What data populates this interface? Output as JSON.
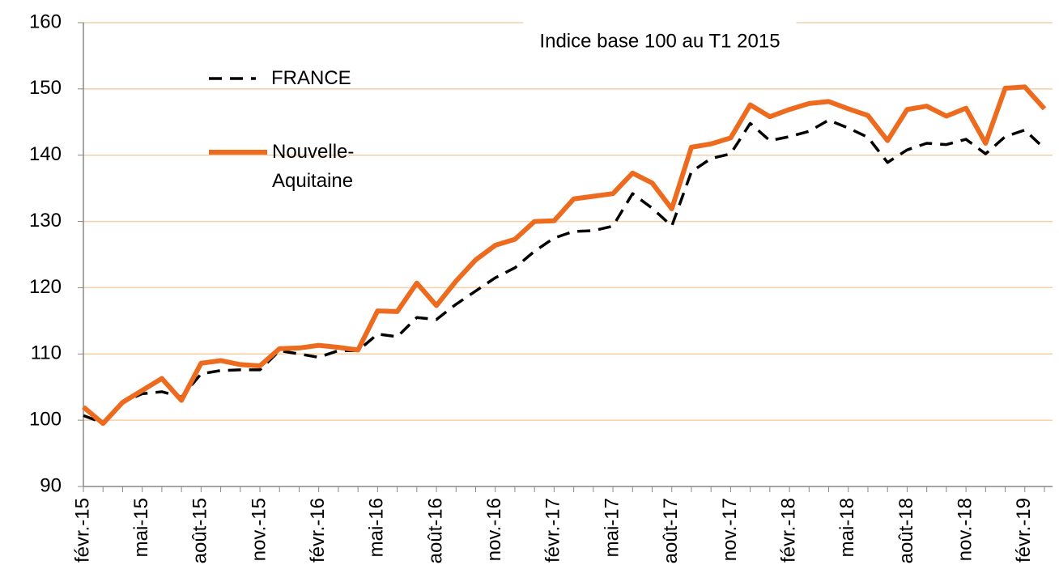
{
  "chart_data": {
    "type": "line",
    "annotation": "Indice base 100 au T1 2015",
    "categories": [
      "févr.-15",
      null,
      null,
      "mai-15",
      null,
      null,
      "août-15",
      null,
      null,
      "nov.-15",
      null,
      null,
      "févr.-16",
      null,
      null,
      "mai-16",
      null,
      null,
      "août-16",
      null,
      null,
      "nov.-16",
      null,
      null,
      "févr.-17",
      null,
      null,
      "mai-17",
      null,
      null,
      "août-17",
      null,
      null,
      "nov.-17",
      null,
      null,
      "févr.-18",
      null,
      null,
      "mai-18",
      null,
      null,
      "août-18",
      null,
      null,
      "nov.-18",
      null,
      null,
      "févr.-19",
      null
    ],
    "series": [
      {
        "name": "FRANCE",
        "color": "#000000",
        "dash": true,
        "values": [
          100.7,
          99.6,
          102.7,
          104,
          104.3,
          103.5,
          107,
          107.5,
          107.6,
          107.6,
          110.5,
          110,
          109.5,
          110.5,
          110.5,
          113,
          112.6,
          115.5,
          115.2,
          117.5,
          119.5,
          121.5,
          123,
          125.5,
          127.5,
          128.5,
          128.6,
          129.3,
          134.2,
          132,
          129.3,
          137.5,
          139.5,
          140.2,
          144.8,
          142.2,
          142.8,
          143.6,
          145.3,
          144.1,
          142.7,
          138.9,
          140.8,
          141.8,
          141.6,
          142.4,
          140.2,
          142.8,
          143.8,
          141
        ]
      },
      {
        "name": "Nouvelle-Aquitaine",
        "color": "#ed6b1e",
        "dash": false,
        "values": [
          102,
          99.5,
          102.7,
          104.5,
          106.3,
          103,
          108.6,
          109,
          108.4,
          108.2,
          110.8,
          110.9,
          111.3,
          111,
          110.6,
          116.5,
          116.4,
          120.7,
          117.3,
          121,
          124.2,
          126.4,
          127.3,
          130,
          130.1,
          133.4,
          133.8,
          134.2,
          137.3,
          135.8,
          131.9,
          141.2,
          141.7,
          142.6,
          147.6,
          145.8,
          146.9,
          147.8,
          148.1,
          147,
          146,
          142.2,
          146.9,
          147.4,
          145.9,
          147.1,
          141.8,
          150.1,
          150.3,
          147
        ]
      }
    ],
    "ylim": [
      90,
      160
    ],
    "yticks": [
      90,
      100,
      110,
      120,
      130,
      140,
      150,
      160
    ],
    "grid": true,
    "legend": "upper left"
  }
}
